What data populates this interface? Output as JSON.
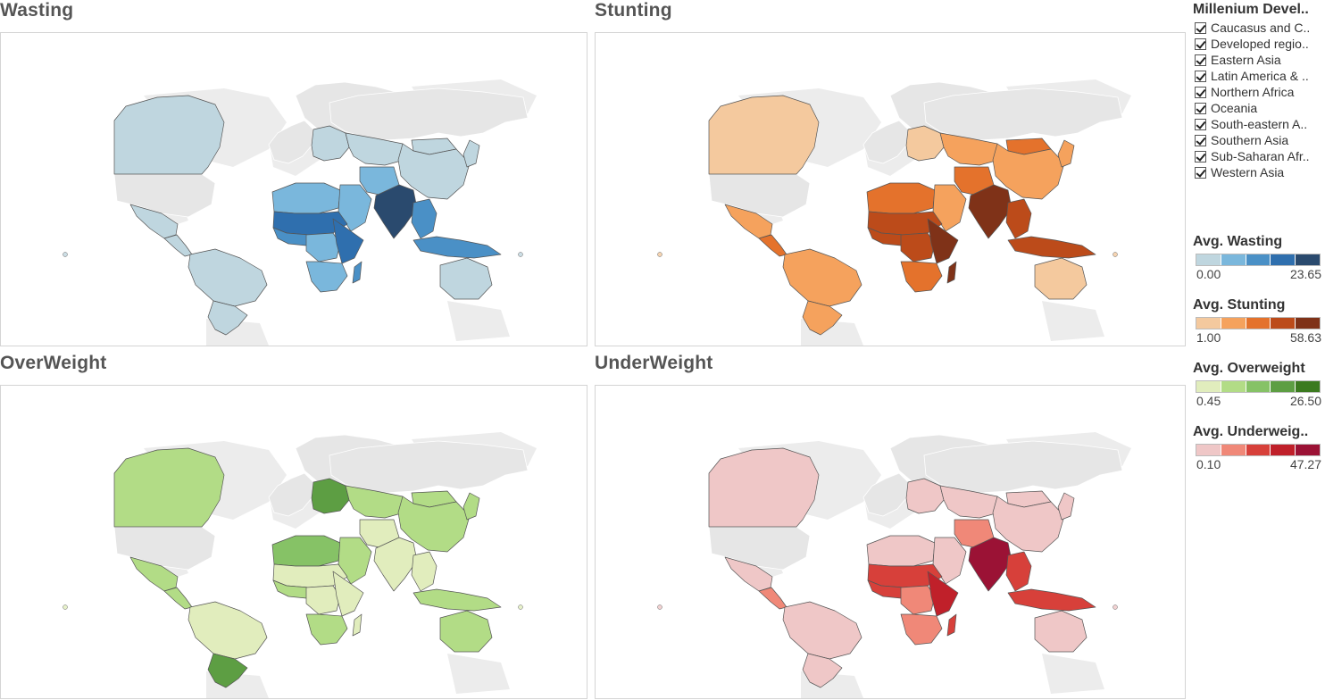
{
  "panels": [
    {
      "id": "wasting",
      "title": "Wasting",
      "palette": [
        "#bfd6df",
        "#7ab7dc",
        "#4a90c6",
        "#2f6fae",
        "#2a4a6e"
      ]
    },
    {
      "id": "stunting",
      "title": "Stunting",
      "palette": [
        "#f4c99e",
        "#f5a25d",
        "#e4722c",
        "#bc4b1a",
        "#7f3218"
      ]
    },
    {
      "id": "overweight",
      "title": "OverWeight",
      "palette": [
        "#e1edbd",
        "#b2dc86",
        "#86c266",
        "#5d9e43",
        "#3b7a1f"
      ]
    },
    {
      "id": "underweight",
      "title": "UnderWeight",
      "palette": [
        "#efc7c7",
        "#f08878",
        "#d7403a",
        "#c0202a",
        "#9b1235"
      ]
    }
  ],
  "filter": {
    "title": "Millenium Devel..",
    "items": [
      "Caucasus and C..",
      "Developed regio..",
      "Eastern Asia",
      "Latin America & ..",
      "Northern Africa",
      "Oceania",
      "South-eastern A..",
      "Southern Asia",
      "Sub-Saharan Afr..",
      "Western Asia"
    ]
  },
  "legends": [
    {
      "title": "Avg. Wasting",
      "min": "0.00",
      "max": "23.65",
      "colors": [
        "#bfd6df",
        "#7ab7dc",
        "#4a90c6",
        "#2f6fae",
        "#2a4a6e"
      ]
    },
    {
      "title": "Avg. Stunting",
      "min": "1.00",
      "max": "58.63",
      "colors": [
        "#f4c99e",
        "#f5a25d",
        "#e4722c",
        "#bc4b1a",
        "#7f3218"
      ]
    },
    {
      "title": "Avg. Overweight",
      "min": "0.45",
      "max": "26.50",
      "colors": [
        "#e1edbd",
        "#b2dc86",
        "#86c266",
        "#5d9e43",
        "#3b7a1f"
      ]
    },
    {
      "title": "Avg. Underweig..",
      "min": "0.10",
      "max": "47.27",
      "colors": [
        "#efc7c7",
        "#f08878",
        "#d7403a",
        "#c0202a",
        "#9b1235"
      ]
    }
  ],
  "regions": {
    "canada": {
      "wasting": 0,
      "stunting": 0,
      "overweight": 1,
      "underweight": 0
    },
    "usa": {
      "wasting": -1,
      "stunting": -1,
      "overweight": -1,
      "underweight": -1
    },
    "greenland": {
      "wasting": -1,
      "stunting": -1,
      "overweight": -1,
      "underweight": -1
    },
    "mexico": {
      "wasting": 0,
      "stunting": 1,
      "overweight": 1,
      "underweight": 0
    },
    "central_america": {
      "wasting": 0,
      "stunting": 2,
      "overweight": 1,
      "underweight": 1
    },
    "north_south_america": {
      "wasting": 0,
      "stunting": 1,
      "overweight": 0,
      "underweight": 0
    },
    "south_south_america": {
      "wasting": 0,
      "stunting": 1,
      "overweight": 3,
      "underweight": 0
    },
    "europe_west": {
      "wasting": -1,
      "stunting": -1,
      "overweight": -1,
      "underweight": -1
    },
    "europe_east": {
      "wasting": 0,
      "stunting": 0,
      "overweight": 3,
      "underweight": 0
    },
    "russia": {
      "wasting": -1,
      "stunting": -1,
      "overweight": -1,
      "underweight": -1
    },
    "central_asia": {
      "wasting": 0,
      "stunting": 1,
      "overweight": 1,
      "underweight": 0
    },
    "china": {
      "wasting": 0,
      "stunting": 1,
      "overweight": 1,
      "underweight": 0
    },
    "mongolia": {
      "wasting": 0,
      "stunting": 2,
      "overweight": 1,
      "underweight": 0
    },
    "north_africa": {
      "wasting": 1,
      "stunting": 2,
      "overweight": 2,
      "underweight": 0
    },
    "sahel": {
      "wasting": 3,
      "stunting": 3,
      "overweight": 0,
      "underweight": 2
    },
    "west_africa": {
      "wasting": 2,
      "stunting": 3,
      "overweight": 1,
      "underweight": 2
    },
    "central_africa": {
      "wasting": 1,
      "stunting": 3,
      "overweight": 0,
      "underweight": 1
    },
    "east_africa": {
      "wasting": 3,
      "stunting": 4,
      "overweight": 0,
      "underweight": 3
    },
    "southern_africa": {
      "wasting": 1,
      "stunting": 2,
      "overweight": 1,
      "underweight": 1
    },
    "madagascar": {
      "wasting": 2,
      "stunting": 4,
      "overweight": 0,
      "underweight": 2
    },
    "arabia": {
      "wasting": 1,
      "stunting": 1,
      "overweight": 1,
      "underweight": 0
    },
    "iran_afg": {
      "wasting": 1,
      "stunting": 2,
      "overweight": 0,
      "underweight": 1
    },
    "south_asia": {
      "wasting": 4,
      "stunting": 4,
      "overweight": 0,
      "underweight": 4
    },
    "se_asia": {
      "wasting": 2,
      "stunting": 3,
      "overweight": 0,
      "underweight": 2
    },
    "indonesia": {
      "wasting": 2,
      "stunting": 3,
      "overweight": 1,
      "underweight": 2
    },
    "australia": {
      "wasting": 0,
      "stunting": 0,
      "overweight": 1,
      "underweight": 0
    },
    "japan_korea": {
      "wasting": 0,
      "stunting": 1,
      "overweight": 1,
      "underweight": 0
    }
  }
}
